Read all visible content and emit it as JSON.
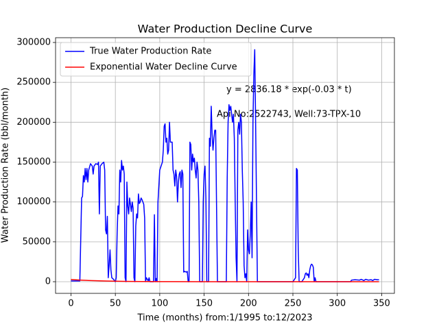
{
  "chart_data": {
    "type": "line",
    "title": "Water Production Decline Curve",
    "xlabel": "Time (months) from:1/1995 to:12/2023",
    "ylabel": "Water Production Rate (bbl/month)",
    "annotations": [
      "y = 2836.18 * exp(-0.03 * t)",
      "Api No:2522743, Well:73-TPX-10"
    ],
    "xlim": [
      -17.35,
      364.35
    ],
    "ylim": [
      -14600,
      306000
    ],
    "xticks": [
      0,
      50,
      100,
      150,
      200,
      250,
      300,
      350
    ],
    "yticks": [
      0,
      50000,
      100000,
      150000,
      200000,
      250000,
      300000
    ],
    "grid": true,
    "legend": "upper left",
    "series": [
      {
        "name": "True Water Production Rate",
        "color": "#0000ff",
        "x": [
          0,
          10,
          12,
          13,
          14,
          15,
          16,
          17,
          18,
          19,
          20,
          22,
          24,
          25,
          26,
          28,
          30,
          31,
          32,
          33,
          35,
          37,
          38,
          39,
          40,
          41,
          42,
          43,
          44,
          45,
          46,
          48,
          50,
          51,
          52,
          53,
          54,
          55,
          56,
          57,
          58,
          59,
          60,
          61,
          62,
          63,
          64,
          65,
          66,
          67,
          68,
          69,
          70,
          71,
          72,
          73,
          74,
          75,
          76,
          77,
          78,
          79,
          80,
          81,
          82,
          83,
          84,
          85,
          86,
          87,
          88,
          89,
          93,
          94,
          95,
          96,
          97,
          98,
          100,
          103,
          104,
          105,
          106,
          107,
          108,
          109,
          110,
          111,
          112,
          114,
          115,
          116,
          117,
          118,
          119,
          120,
          121,
          122,
          123,
          124,
          125,
          126,
          127,
          128,
          130,
          131,
          132,
          133,
          134,
          135,
          136,
          137,
          138,
          139,
          140,
          141,
          142,
          143,
          144,
          145,
          148,
          149,
          150,
          151,
          152,
          153,
          155,
          156,
          157,
          158,
          159,
          160,
          161,
          162,
          163,
          165,
          170,
          175,
          176,
          177,
          178,
          179,
          180,
          181,
          182,
          183,
          184,
          185,
          186,
          187,
          188,
          189,
          190,
          191,
          192,
          193,
          194,
          195,
          196,
          197,
          198,
          199,
          200,
          201,
          202,
          203,
          204,
          205,
          206,
          207,
          208,
          209,
          210,
          211,
          250,
          253,
          254,
          255,
          256,
          257,
          260,
          263,
          264,
          265,
          266,
          267,
          268,
          269,
          270,
          271,
          272,
          273,
          274,
          275,
          276,
          280,
          315,
          316,
          320,
          325,
          327,
          330,
          332,
          335,
          338,
          340,
          342,
          345,
          347
        ],
        "values": [
          1000,
          1000,
          105000,
          107000,
          133000,
          125000,
          142000,
          128000,
          142000,
          125000,
          140000,
          148000,
          145000,
          135000,
          145000,
          148000,
          147000,
          150000,
          85000,
          145000,
          148000,
          150000,
          140000,
          65000,
          60000,
          82000,
          5000,
          20000,
          40000,
          15000,
          5000,
          3000,
          0,
          5000,
          60000,
          95000,
          85000,
          140000,
          125000,
          152000,
          140000,
          145000,
          135000,
          5000,
          0,
          125000,
          95000,
          85000,
          105000,
          97000,
          88000,
          100000,
          92000,
          5000,
          0,
          70000,
          85000,
          80000,
          110000,
          98000,
          100000,
          105000,
          103000,
          100000,
          97000,
          80000,
          0,
          5000,
          3000,
          1000,
          5000,
          0,
          0,
          84000,
          0,
          4000,
          0,
          100000,
          140000,
          150000,
          165000,
          195000,
          198000,
          175000,
          180000,
          160000,
          165000,
          200000,
          175000,
          175000,
          140000,
          135000,
          120000,
          140000,
          132000,
          100000,
          125000,
          135000,
          138000,
          118000,
          140000,
          135000,
          12000,
          13000,
          12000,
          13000,
          0,
          0,
          175000,
          172000,
          140000,
          160000,
          150000,
          155000,
          140000,
          130000,
          150000,
          140000,
          100000,
          0,
          0,
          100000,
          135000,
          145000,
          105000,
          0,
          0,
          180000,
          170000,
          220000,
          185000,
          165000,
          180000,
          190000,
          190000,
          0,
          0,
          0,
          130000,
          200000,
          222000,
          215000,
          220000,
          210000,
          200000,
          210000,
          180000,
          100000,
          30000,
          0,
          190000,
          200000,
          185000,
          210000,
          200000,
          140000,
          100000,
          20000,
          5000,
          10000,
          0,
          65000,
          40000,
          35000,
          60000,
          100000,
          30000,
          200000,
          260000,
          291000,
          200000,
          100000,
          0,
          0,
          0,
          5000,
          142000,
          140000,
          40000,
          0,
          0,
          5000,
          10000,
          11000,
          8000,
          10000,
          5000,
          15000,
          20000,
          22000,
          21000,
          18000,
          0,
          5000,
          0,
          0,
          0,
          2000,
          2500,
          2000,
          3000,
          1500,
          3000,
          2000,
          2500,
          1500,
          3000,
          2500,
          2500
        ]
      },
      {
        "name": "Exponential Water Decline Curve",
        "color": "#ff0000",
        "x": [
          0,
          10,
          20,
          30,
          40,
          60,
          80,
          100,
          150,
          200,
          250,
          347
        ],
        "values": [
          2836,
          2101,
          1557,
          1153,
          854,
          469,
          257,
          141,
          32,
          7,
          2,
          0.1
        ]
      }
    ]
  }
}
